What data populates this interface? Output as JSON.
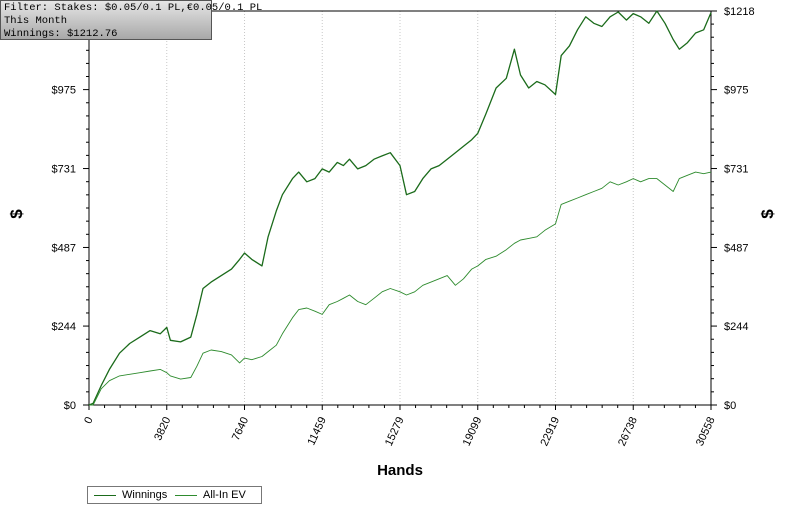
{
  "info": {
    "filter": "Filter: Stakes: $0.05/0.1 PL,€0.05/0.1 PL",
    "period": "This Month",
    "winnings": "Winnings: $1212.76"
  },
  "colors": {
    "winnings": "#1b6b1b",
    "allin": "#2e8b2e",
    "axis": "#000000",
    "grid": "#c8c8c8"
  },
  "chart_data": {
    "type": "line",
    "title": "",
    "xlabel": "Hands",
    "ylabel": "$",
    "xlim": [
      0,
      30558
    ],
    "ylim": [
      0,
      1218
    ],
    "x_ticks": [
      0,
      3820,
      7640,
      11459,
      15279,
      19099,
      22919,
      26738,
      30558
    ],
    "y_ticks": [
      0,
      244,
      487,
      731,
      975,
      1218
    ],
    "y_tick_labels": [
      "$0",
      "$244",
      "$487",
      "$731",
      "$975",
      "$1218"
    ],
    "grid": true,
    "legend": "bottom-left",
    "series": [
      {
        "name": "Winnings",
        "x": [
          0,
          200,
          600,
          1000,
          1500,
          2000,
          2500,
          3000,
          3500,
          3820,
          4000,
          4500,
          5000,
          5300,
          5600,
          6000,
          6500,
          7000,
          7400,
          7640,
          8000,
          8500,
          8800,
          9200,
          9500,
          10000,
          10300,
          10700,
          11100,
          11459,
          11800,
          12200,
          12500,
          12800,
          13200,
          13600,
          14000,
          14400,
          14800,
          15279,
          15600,
          16000,
          16400,
          16800,
          17200,
          17600,
          18000,
          18400,
          18800,
          19099,
          19500,
          20000,
          20500,
          20900,
          21200,
          21600,
          22000,
          22400,
          22919,
          23200,
          23600,
          24000,
          24400,
          24800,
          25200,
          25600,
          26000,
          26400,
          26738,
          27100,
          27500,
          27900,
          28300,
          28700,
          29000,
          29400,
          29800,
          30200,
          30558
        ],
        "y": [
          0,
          5,
          60,
          110,
          160,
          190,
          210,
          230,
          220,
          240,
          200,
          195,
          210,
          280,
          360,
          380,
          400,
          420,
          450,
          470,
          450,
          430,
          520,
          600,
          650,
          700,
          720,
          690,
          700,
          730,
          720,
          750,
          740,
          760,
          730,
          740,
          760,
          770,
          780,
          740,
          650,
          660,
          700,
          730,
          740,
          760,
          780,
          800,
          820,
          840,
          900,
          980,
          1010,
          1100,
          1020,
          980,
          1000,
          990,
          960,
          1080,
          1110,
          1160,
          1200,
          1180,
          1170,
          1200,
          1215,
          1190,
          1210,
          1200,
          1180,
          1218,
          1180,
          1130,
          1100,
          1120,
          1150,
          1160,
          1213
        ]
      },
      {
        "name": "All-In EV",
        "x": [
          0,
          200,
          600,
          1000,
          1500,
          2000,
          2500,
          3000,
          3500,
          3820,
          4000,
          4500,
          5000,
          5300,
          5600,
          6000,
          6500,
          7000,
          7400,
          7640,
          8000,
          8500,
          8800,
          9200,
          9500,
          10000,
          10300,
          10700,
          11100,
          11459,
          11800,
          12200,
          12500,
          12800,
          13200,
          13600,
          14000,
          14400,
          14800,
          15279,
          15600,
          16000,
          16400,
          16800,
          17200,
          17600,
          18000,
          18400,
          18800,
          19099,
          19500,
          20000,
          20500,
          20900,
          21200,
          21600,
          22000,
          22400,
          22919,
          23200,
          23600,
          24000,
          24400,
          24800,
          25200,
          25600,
          26000,
          26400,
          26738,
          27100,
          27500,
          27900,
          28300,
          28700,
          29000,
          29400,
          29800,
          30200,
          30558
        ],
        "y": [
          0,
          0,
          50,
          75,
          90,
          95,
          100,
          105,
          110,
          100,
          90,
          80,
          85,
          120,
          160,
          170,
          165,
          155,
          130,
          145,
          140,
          150,
          165,
          185,
          220,
          270,
          295,
          300,
          290,
          280,
          310,
          320,
          330,
          340,
          320,
          310,
          330,
          350,
          360,
          350,
          340,
          350,
          370,
          380,
          390,
          400,
          370,
          390,
          420,
          430,
          450,
          460,
          480,
          500,
          510,
          515,
          520,
          540,
          560,
          620,
          630,
          640,
          650,
          660,
          670,
          690,
          680,
          690,
          700,
          690,
          700,
          700,
          680,
          660,
          700,
          710,
          720,
          715,
          720
        ]
      }
    ]
  }
}
